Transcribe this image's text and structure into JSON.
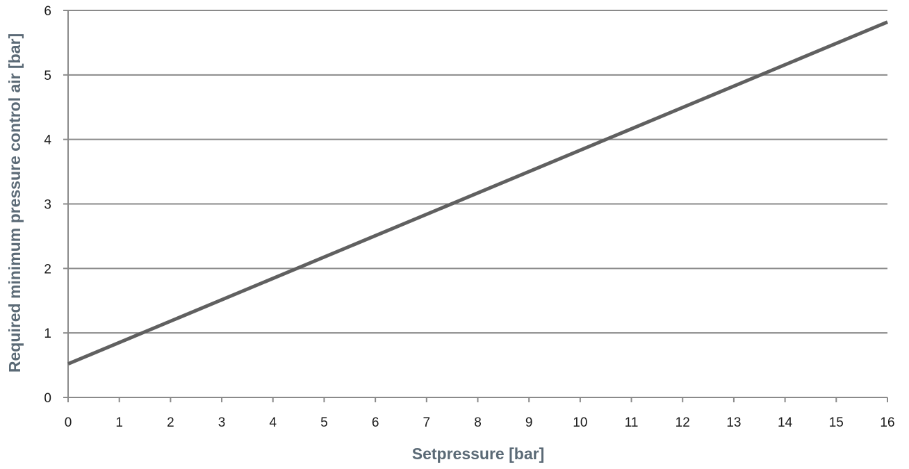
{
  "chart_data": {
    "type": "line",
    "title": "",
    "xlabel": "Setpressure [bar]",
    "ylabel": "Required minimum pressure control air  [bar]",
    "xlim": [
      0,
      16
    ],
    "ylim": [
      0,
      6
    ],
    "x_ticks": [
      "0",
      "1",
      "2",
      "3",
      "4",
      "5",
      "6",
      "7",
      "8",
      "9",
      "10",
      "11",
      "12",
      "13",
      "14",
      "15",
      "16"
    ],
    "y_ticks": [
      "0",
      "1",
      "2",
      "3",
      "4",
      "5",
      "6"
    ],
    "grid": "horizontal",
    "series": [
      {
        "x": [
          0,
          16
        ],
        "y": [
          0.52,
          5.82
        ]
      }
    ],
    "colors": {
      "line": "#606060",
      "grid": "#8a8a8a",
      "axis_title": "#5b6a76"
    }
  }
}
